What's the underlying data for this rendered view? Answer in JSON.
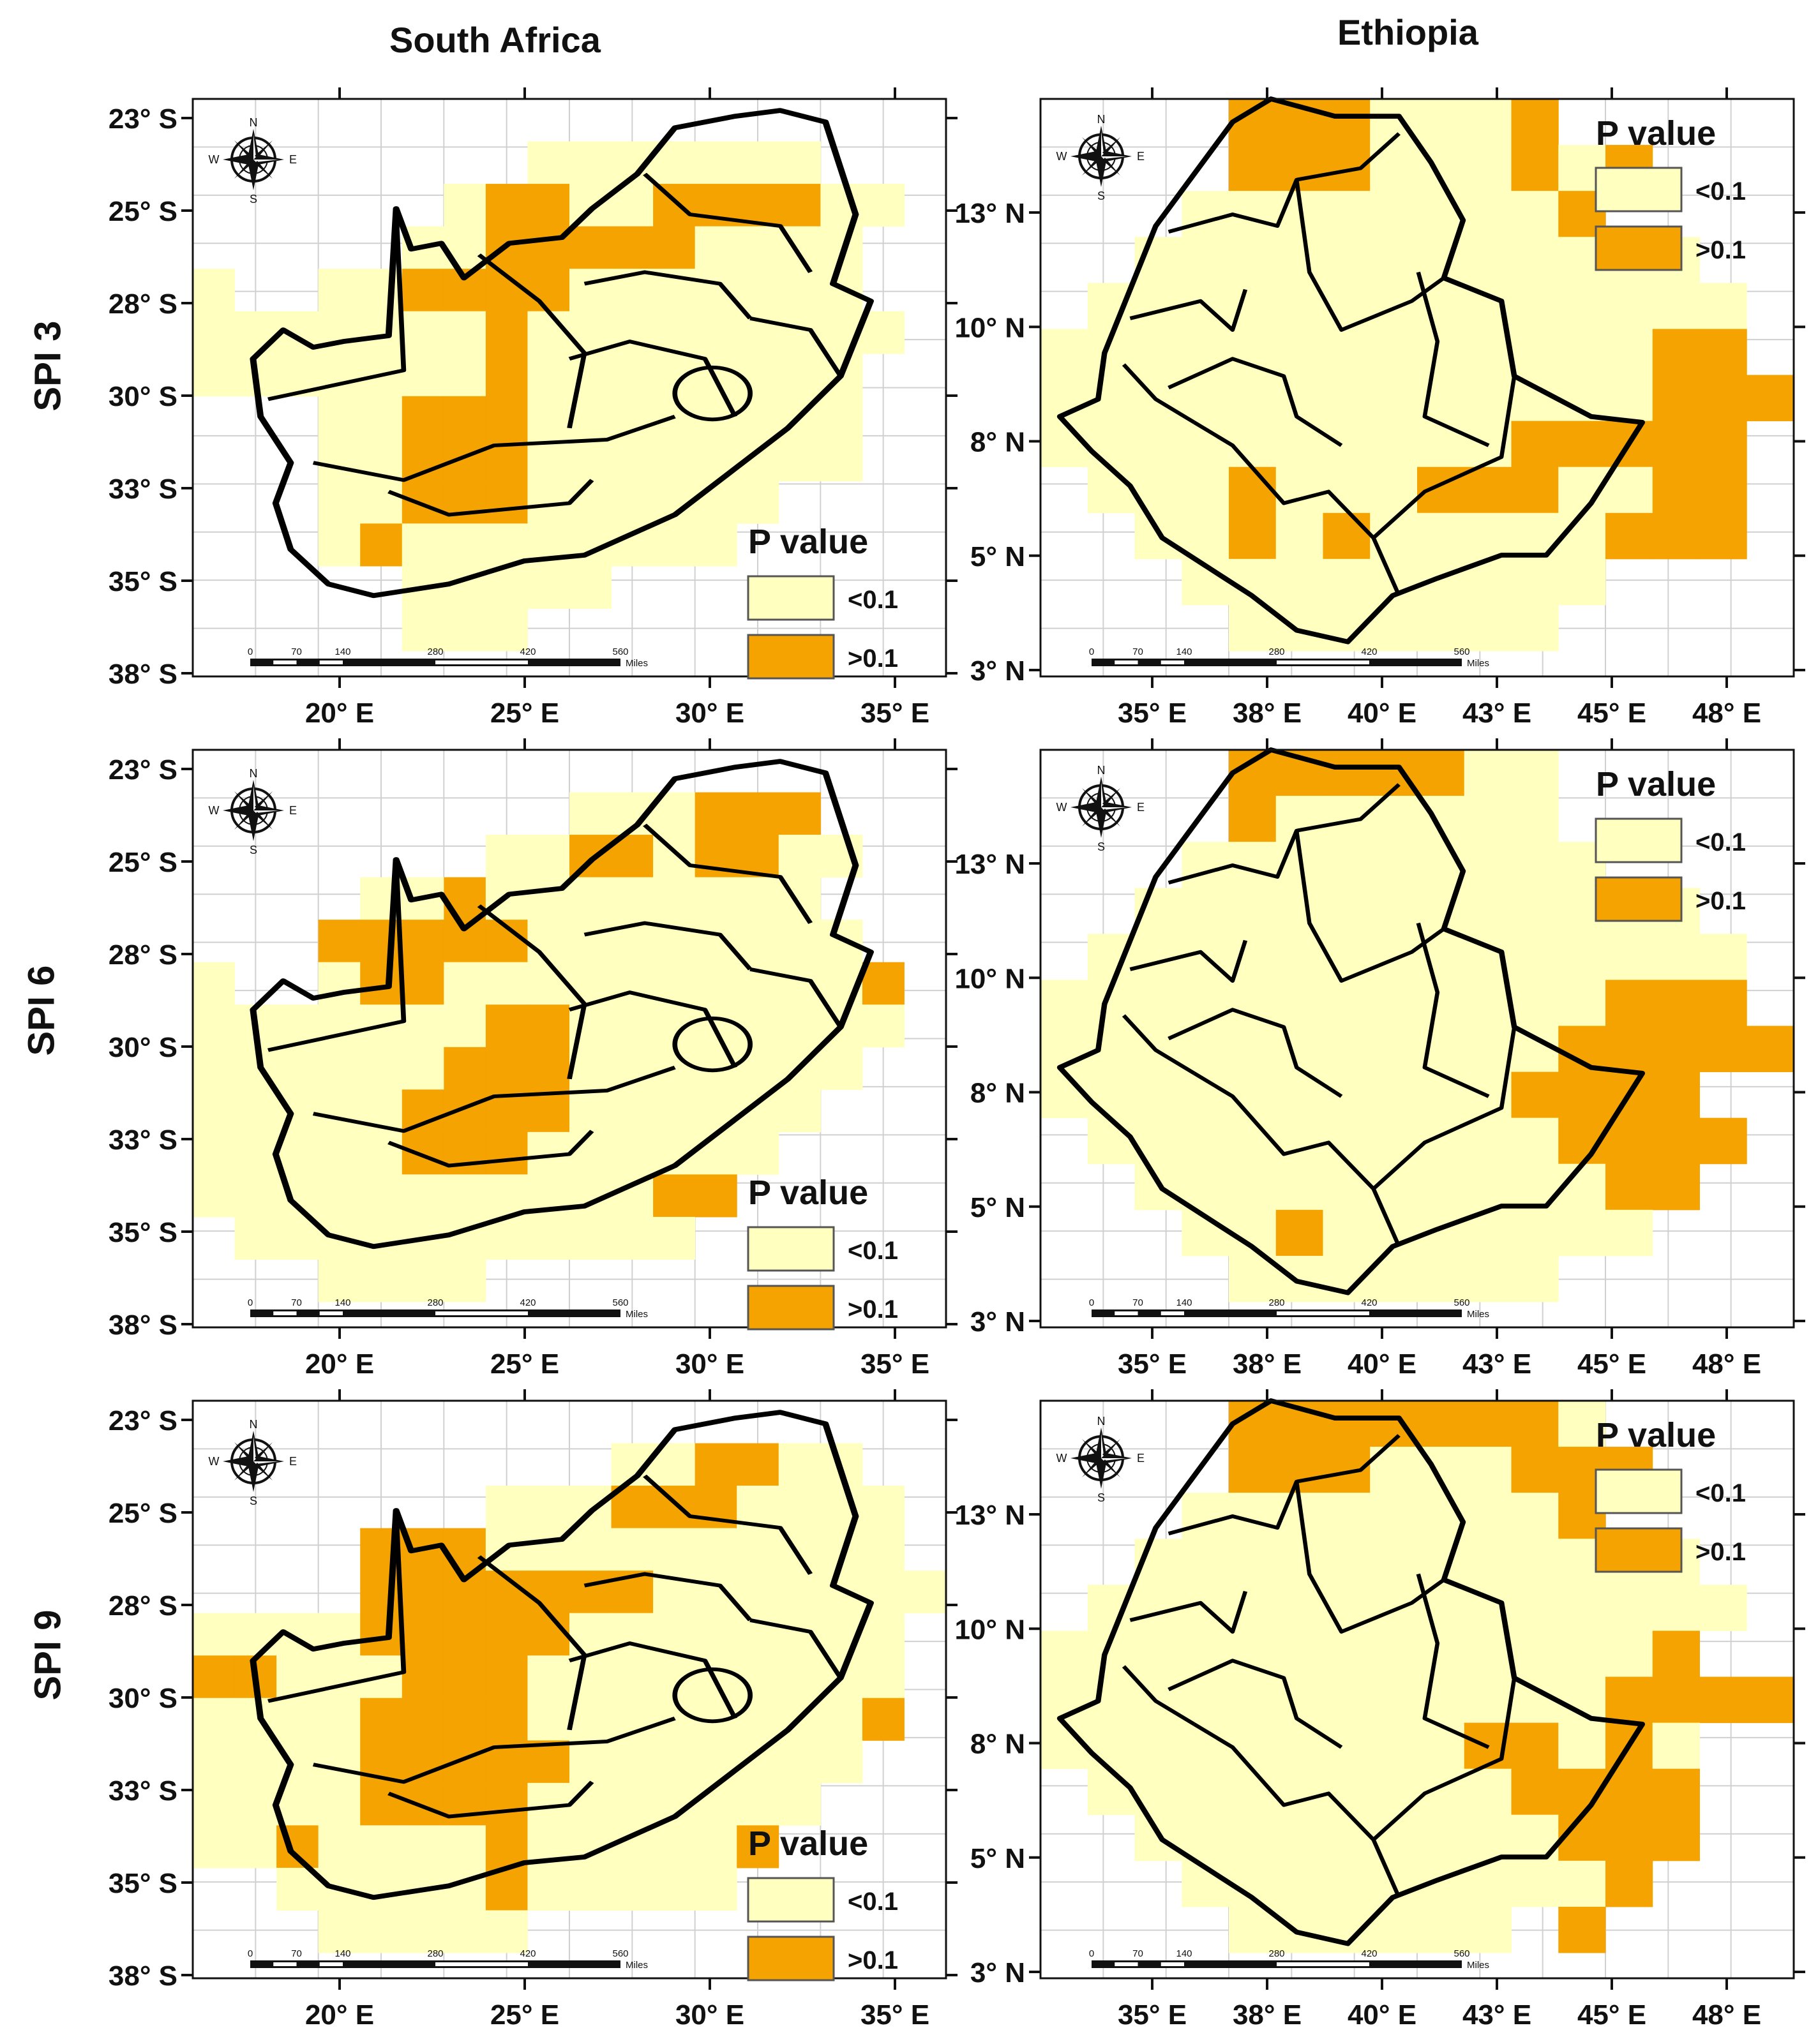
{
  "columns": [
    {
      "key": "sa",
      "title": "South Africa"
    },
    {
      "key": "et",
      "title": "Ethiopia"
    }
  ],
  "rows": [
    {
      "key": "spi3",
      "label": "SPI 3"
    },
    {
      "key": "spi6",
      "label": "SPI 6"
    },
    {
      "key": "spi9",
      "label": "SPI 9"
    }
  ],
  "legend": {
    "title": "P value",
    "items": [
      {
        "label": "<0.1",
        "color": "#FFFFC0"
      },
      {
        "label": ">0.1",
        "color": "#F5A300"
      }
    ]
  },
  "colors": {
    "low": "#FFFFC0",
    "high": "#F5A300",
    "border": "#000000",
    "grid": "#d0d0d0"
  },
  "scale_bar": {
    "ticks": [
      "0",
      "70",
      "140",
      "280",
      "420",
      "560"
    ],
    "unit": "Miles"
  },
  "compass": {
    "n": "N",
    "s": "S",
    "e": "E",
    "w": "W"
  },
  "south_africa_axes": {
    "y_ticks": [
      "23° S",
      "25° S",
      "28° S",
      "30° S",
      "33° S",
      "35° S",
      "38° S"
    ],
    "x_ticks": [
      "20° E",
      "25° E",
      "30° E",
      "35° E"
    ]
  },
  "ethiopia_axes": {
    "y_ticks": [
      "13° N",
      "10° N",
      "8° N",
      "5° N",
      "3° N"
    ],
    "x_ticks": [
      "35° E",
      "38° E",
      "40° E",
      "43° E",
      "45° E",
      "48° E"
    ]
  }
}
